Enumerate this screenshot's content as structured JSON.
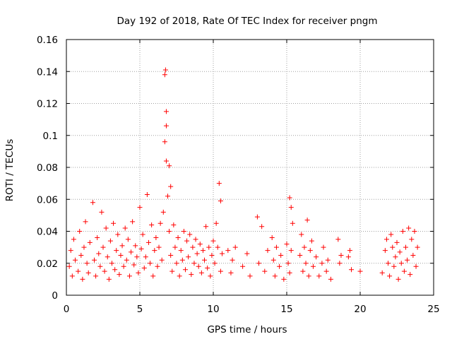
{
  "colors": {
    "series": "#ff0000",
    "grid": "#a0a0a0",
    "axis": "#000000"
  },
  "chart_data": {
    "type": "scatter",
    "title": "Day 192 of 2018, Rate Of TEC Index for receiver pngm",
    "xlabel": "GPS time / hours",
    "ylabel": "ROTI / TECUs",
    "xlim": [
      0,
      25
    ],
    "ylim": [
      0,
      0.16
    ],
    "xticks": [
      0,
      5,
      10,
      15,
      20,
      25
    ],
    "xtick_labels": [
      "0",
      "5",
      "10",
      "15",
      "20",
      "25"
    ],
    "yticks": [
      0,
      0.02,
      0.04,
      0.06,
      0.08,
      0.1,
      0.12,
      0.14,
      0.16
    ],
    "ytick_labels": [
      "0",
      "0.02",
      "0.04",
      "0.06",
      "0.08",
      "0.1",
      "0.12",
      "0.14",
      "0.16"
    ],
    "grid": true,
    "marker": "+",
    "series": [
      {
        "name": "ROTI",
        "points": [
          [
            0.2,
            0.018
          ],
          [
            0.3,
            0.028
          ],
          [
            0.4,
            0.012
          ],
          [
            0.5,
            0.035
          ],
          [
            0.6,
            0.022
          ],
          [
            0.8,
            0.015
          ],
          [
            0.9,
            0.04
          ],
          [
            1.0,
            0.025
          ],
          [
            1.1,
            0.01
          ],
          [
            1.2,
            0.03
          ],
          [
            1.3,
            0.046
          ],
          [
            1.4,
            0.02
          ],
          [
            1.5,
            0.014
          ],
          [
            1.6,
            0.033
          ],
          [
            1.8,
            0.058
          ],
          [
            1.9,
            0.022
          ],
          [
            2.0,
            0.012
          ],
          [
            2.1,
            0.036
          ],
          [
            2.2,
            0.026
          ],
          [
            2.3,
            0.018
          ],
          [
            2.4,
            0.052
          ],
          [
            2.5,
            0.03
          ],
          [
            2.6,
            0.015
          ],
          [
            2.7,
            0.042
          ],
          [
            2.8,
            0.024
          ],
          [
            2.9,
            0.01
          ],
          [
            3.0,
            0.034
          ],
          [
            3.1,
            0.02
          ],
          [
            3.2,
            0.045
          ],
          [
            3.3,
            0.016
          ],
          [
            3.4,
            0.028
          ],
          [
            3.5,
            0.038
          ],
          [
            3.6,
            0.013
          ],
          [
            3.7,
            0.025
          ],
          [
            3.8,
            0.031
          ],
          [
            3.9,
            0.018
          ],
          [
            4.0,
            0.042
          ],
          [
            4.1,
            0.022
          ],
          [
            4.2,
            0.035
          ],
          [
            4.3,
            0.012
          ],
          [
            4.4,
            0.027
          ],
          [
            4.5,
            0.046
          ],
          [
            4.6,
            0.019
          ],
          [
            4.7,
            0.031
          ],
          [
            4.8,
            0.024
          ],
          [
            4.9,
            0.014
          ],
          [
            5.0,
            0.055
          ],
          [
            5.1,
            0.029
          ],
          [
            5.2,
            0.038
          ],
          [
            5.3,
            0.017
          ],
          [
            5.4,
            0.024
          ],
          [
            5.5,
            0.063
          ],
          [
            5.6,
            0.033
          ],
          [
            5.7,
            0.02
          ],
          [
            5.8,
            0.044
          ],
          [
            5.9,
            0.012
          ],
          [
            6.0,
            0.028
          ],
          [
            6.1,
            0.036
          ],
          [
            6.2,
            0.018
          ],
          [
            6.3,
            0.03
          ],
          [
            6.4,
            0.045
          ],
          [
            6.5,
            0.022
          ],
          [
            6.6,
            0.052
          ],
          [
            6.7,
            0.138
          ],
          [
            6.75,
            0.141
          ],
          [
            6.8,
            0.115
          ],
          [
            6.8,
            0.106
          ],
          [
            6.7,
            0.096
          ],
          [
            6.8,
            0.084
          ],
          [
            7.0,
            0.081
          ],
          [
            7.1,
            0.068
          ],
          [
            6.9,
            0.062
          ],
          [
            7.0,
            0.04
          ],
          [
            7.1,
            0.025
          ],
          [
            7.2,
            0.015
          ],
          [
            7.3,
            0.044
          ],
          [
            7.4,
            0.03
          ],
          [
            7.5,
            0.02
          ],
          [
            7.6,
            0.036
          ],
          [
            7.7,
            0.012
          ],
          [
            7.8,
            0.028
          ],
          [
            7.9,
            0.022
          ],
          [
            8.0,
            0.04
          ],
          [
            8.1,
            0.016
          ],
          [
            8.2,
            0.034
          ],
          [
            8.3,
            0.024
          ],
          [
            8.4,
            0.038
          ],
          [
            8.5,
            0.013
          ],
          [
            8.6,
            0.03
          ],
          [
            8.7,
            0.02
          ],
          [
            8.8,
            0.035
          ],
          [
            8.9,
            0.026
          ],
          [
            9.0,
            0.018
          ],
          [
            9.1,
            0.032
          ],
          [
            9.2,
            0.014
          ],
          [
            9.3,
            0.028
          ],
          [
            9.4,
            0.022
          ],
          [
            9.5,
            0.043
          ],
          [
            9.6,
            0.017
          ],
          [
            9.7,
            0.03
          ],
          [
            9.8,
            0.012
          ],
          [
            9.9,
            0.025
          ],
          [
            10.0,
            0.034
          ],
          [
            10.1,
            0.02
          ],
          [
            10.2,
            0.045
          ],
          [
            10.3,
            0.03
          ],
          [
            10.4,
            0.07
          ],
          [
            10.5,
            0.059
          ],
          [
            10.6,
            0.026
          ],
          [
            10.5,
            0.015
          ],
          [
            11.0,
            0.028
          ],
          [
            11.2,
            0.014
          ],
          [
            11.3,
            0.022
          ],
          [
            11.5,
            0.03
          ],
          [
            12.0,
            0.018
          ],
          [
            12.3,
            0.026
          ],
          [
            12.5,
            0.012
          ],
          [
            13.0,
            0.049
          ],
          [
            13.1,
            0.02
          ],
          [
            13.3,
            0.043
          ],
          [
            13.5,
            0.015
          ],
          [
            13.7,
            0.028
          ],
          [
            14.0,
            0.036
          ],
          [
            14.1,
            0.022
          ],
          [
            14.2,
            0.012
          ],
          [
            14.3,
            0.03
          ],
          [
            14.5,
            0.018
          ],
          [
            14.6,
            0.025
          ],
          [
            14.8,
            0.01
          ],
          [
            15.0,
            0.032
          ],
          [
            15.1,
            0.02
          ],
          [
            15.2,
            0.061
          ],
          [
            15.3,
            0.055
          ],
          [
            15.4,
            0.045
          ],
          [
            15.3,
            0.028
          ],
          [
            15.2,
            0.014
          ],
          [
            15.9,
            0.025
          ],
          [
            16.0,
            0.038
          ],
          [
            16.1,
            0.015
          ],
          [
            16.2,
            0.03
          ],
          [
            16.3,
            0.02
          ],
          [
            16.4,
            0.047
          ],
          [
            16.5,
            0.012
          ],
          [
            16.6,
            0.028
          ],
          [
            16.7,
            0.034
          ],
          [
            16.8,
            0.018
          ],
          [
            17.0,
            0.024
          ],
          [
            17.2,
            0.012
          ],
          [
            17.4,
            0.02
          ],
          [
            17.5,
            0.03
          ],
          [
            17.7,
            0.015
          ],
          [
            17.8,
            0.022
          ],
          [
            18.0,
            0.01
          ],
          [
            18.5,
            0.035
          ],
          [
            18.6,
            0.02
          ],
          [
            18.7,
            0.025
          ],
          [
            19.2,
            0.024
          ],
          [
            19.3,
            0.028
          ],
          [
            19.4,
            0.016
          ],
          [
            20.0,
            0.015
          ],
          [
            21.5,
            0.014
          ],
          [
            21.7,
            0.028
          ],
          [
            21.8,
            0.035
          ],
          [
            21.9,
            0.02
          ],
          [
            22.0,
            0.012
          ],
          [
            22.1,
            0.038
          ],
          [
            22.2,
            0.03
          ],
          [
            22.3,
            0.018
          ],
          [
            22.4,
            0.024
          ],
          [
            22.5,
            0.033
          ],
          [
            22.6,
            0.01
          ],
          [
            22.7,
            0.027
          ],
          [
            22.8,
            0.02
          ],
          [
            22.9,
            0.04
          ],
          [
            23.0,
            0.015
          ],
          [
            23.1,
            0.03
          ],
          [
            23.2,
            0.022
          ],
          [
            23.3,
            0.042
          ],
          [
            23.4,
            0.013
          ],
          [
            23.5,
            0.035
          ],
          [
            23.6,
            0.025
          ],
          [
            23.7,
            0.04
          ],
          [
            23.8,
            0.018
          ],
          [
            23.9,
            0.03
          ]
        ]
      }
    ]
  }
}
